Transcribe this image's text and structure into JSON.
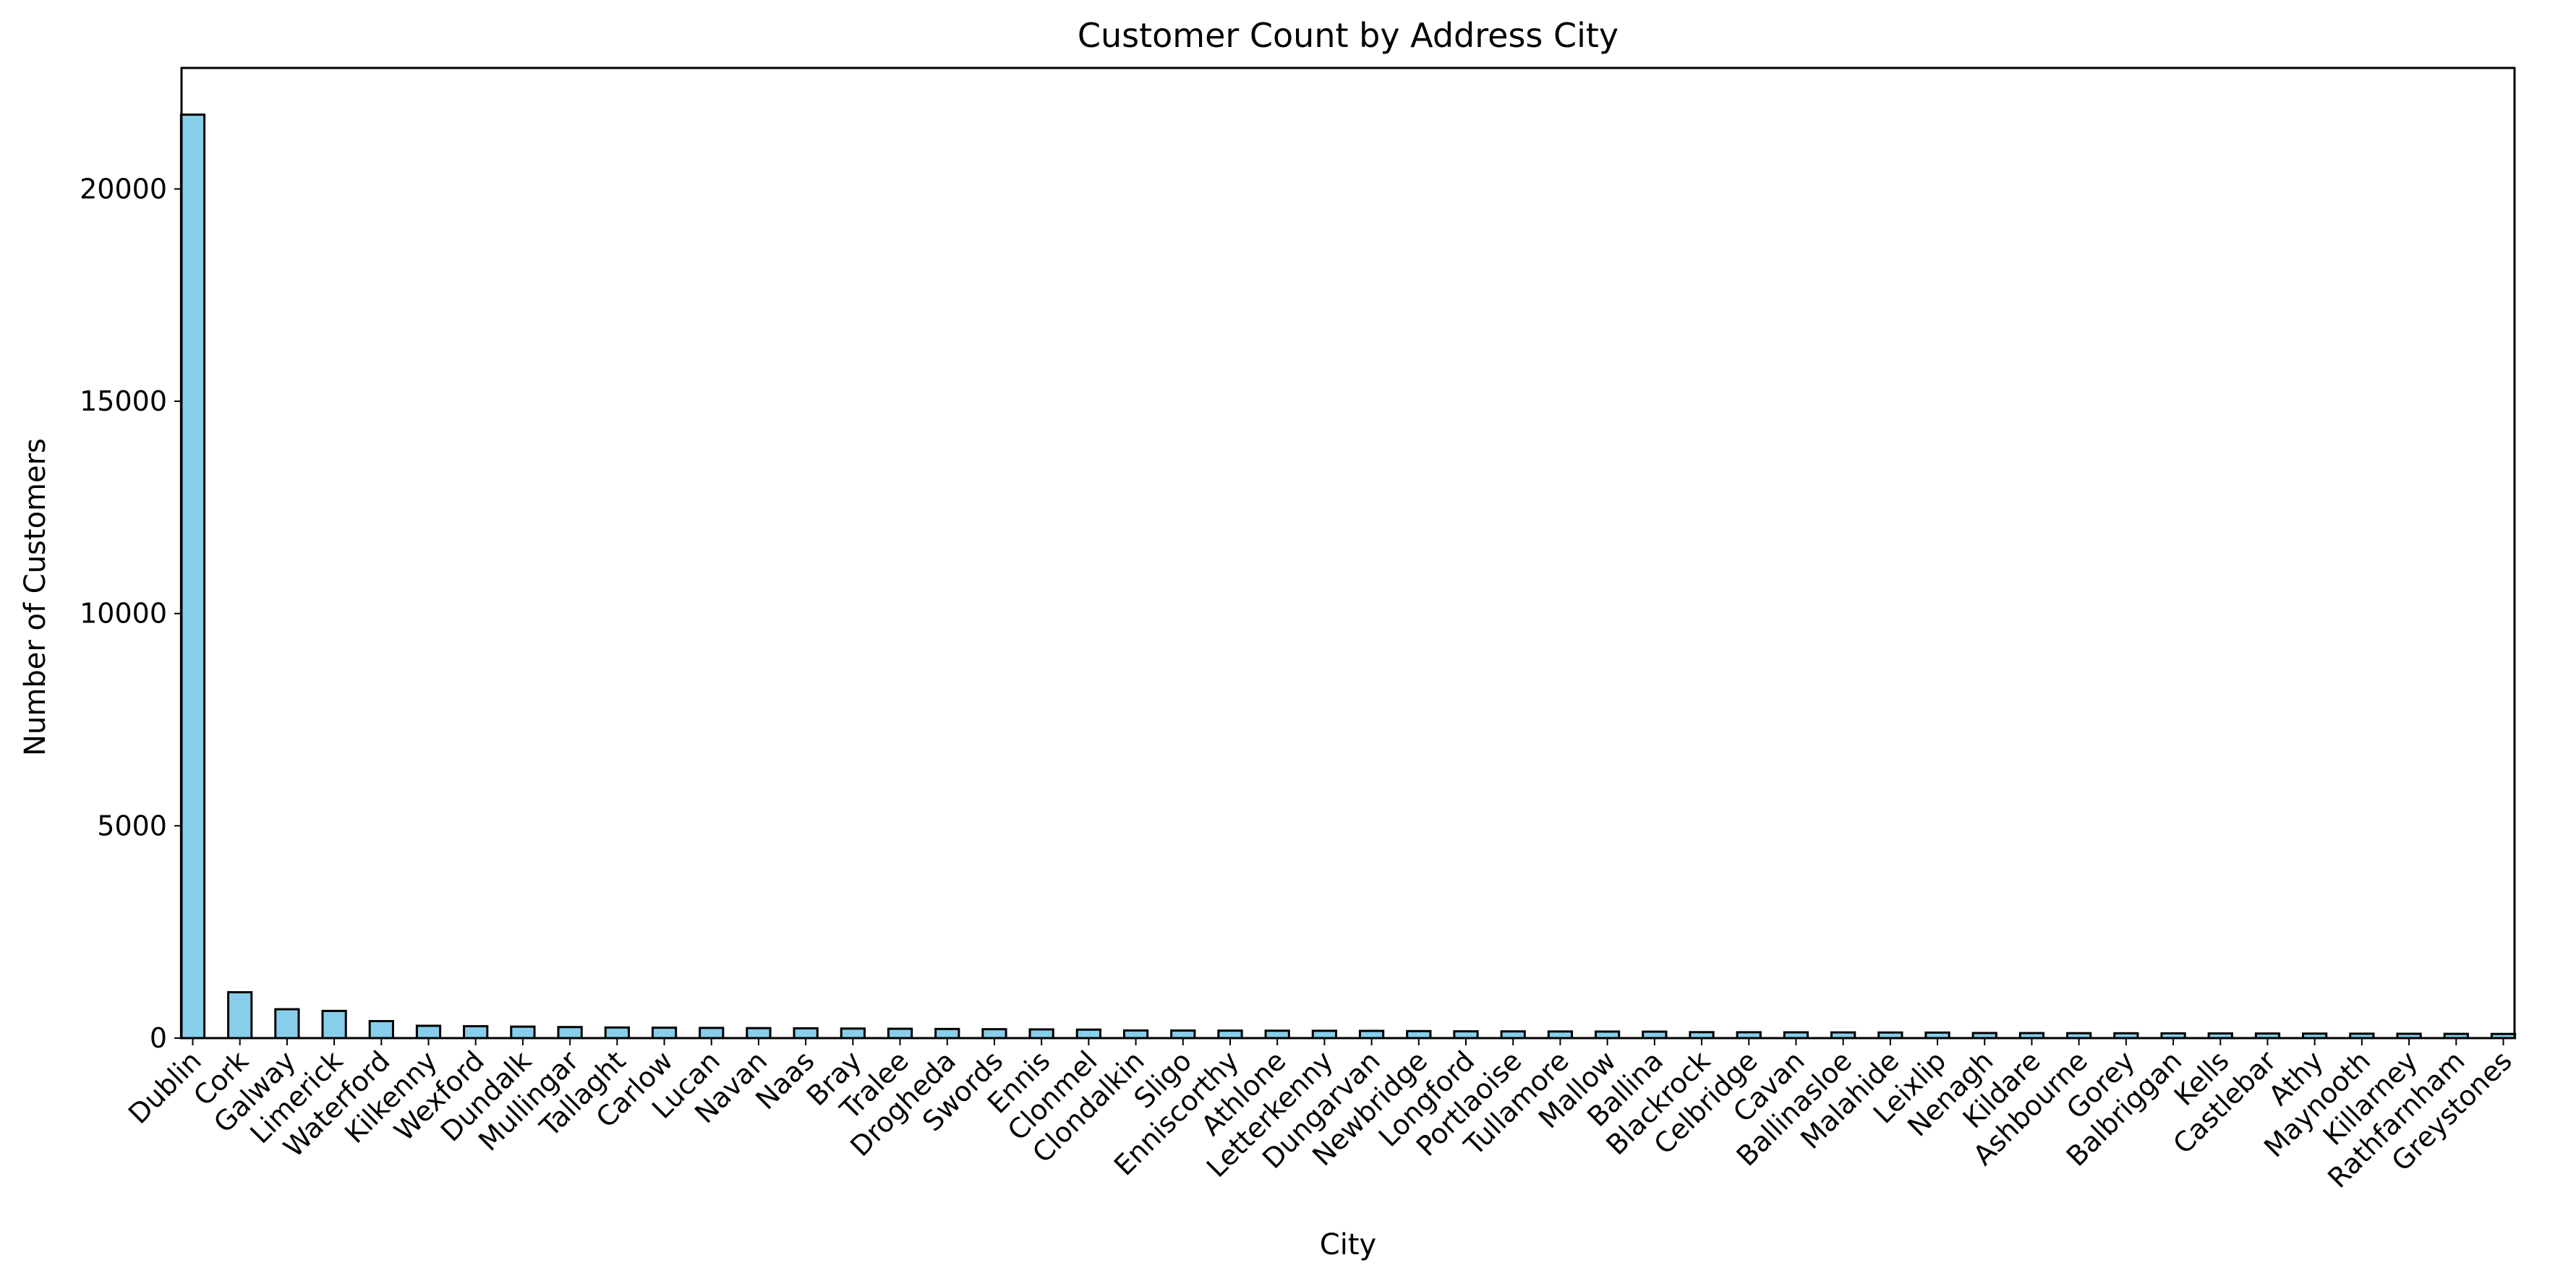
{
  "chart_data": {
    "type": "bar",
    "title": "Customer Count by Address City",
    "xlabel": "City",
    "ylabel": "Number of Customers",
    "ylim": [
      0,
      22850
    ],
    "yticks": [
      0,
      5000,
      10000,
      15000,
      20000
    ],
    "grid": false,
    "bar_color": "#87CEEB",
    "bar_edge_color": "#000000",
    "categories": [
      "Dublin",
      "Cork",
      "Galway",
      "Limerick",
      "Waterford",
      "Kilkenny",
      "Wexford",
      "Dundalk",
      "Mullingar",
      "Tallaght",
      "Carlow",
      "Lucan",
      "Navan",
      "Naas",
      "Bray",
      "Tralee",
      "Drogheda",
      "Swords",
      "Ennis",
      "Clonmel",
      "Clondalkin",
      "Sligo",
      "Enniscorthy",
      "Athlone",
      "Letterkenny",
      "Dungarvan",
      "Newbridge",
      "Longford",
      "Portlaoise",
      "Tullamore",
      "Mallow",
      "Ballina",
      "Blackrock",
      "Celbridge",
      "Cavan",
      "Ballinasloe",
      "Malahide",
      "Leixlip",
      "Nenagh",
      "Kildare",
      "Ashbourne",
      "Gorey",
      "Balbriggan",
      "Kells",
      "Castlebar",
      "Athy",
      "Maynooth",
      "Killarney",
      "Rathfarnham",
      "Greystones"
    ],
    "values": [
      21750,
      1080,
      680,
      640,
      400,
      290,
      280,
      270,
      260,
      250,
      245,
      240,
      235,
      230,
      225,
      220,
      215,
      210,
      205,
      200,
      180,
      178,
      176,
      174,
      172,
      170,
      165,
      160,
      158,
      156,
      154,
      152,
      140,
      138,
      136,
      134,
      132,
      130,
      120,
      118,
      116,
      114,
      112,
      110,
      108,
      106,
      104,
      102,
      100,
      98
    ]
  }
}
